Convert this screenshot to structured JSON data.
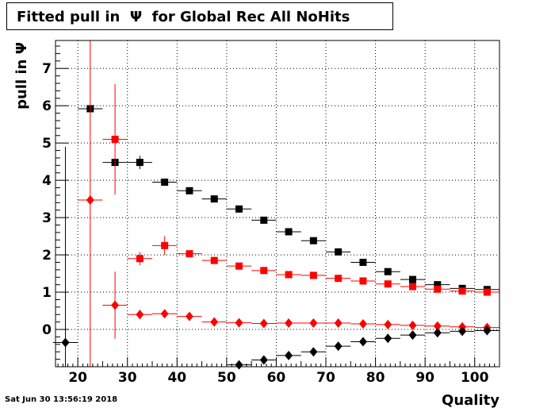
{
  "title": "Fitted pull in  Ψ  for Global Rec All NoHits",
  "timestamp": "Sat Jun 30 13:56:19 2018",
  "chart_data": {
    "type": "scatter",
    "title": "Fitted pull in  Ψ  for Global Rec All NoHits",
    "xlabel": "Quality",
    "ylabel": "pull in  Ψ",
    "xlim": [
      15.5,
      105
    ],
    "ylim": [
      -1,
      7.75
    ],
    "grid": true,
    "xticks": [
      20,
      30,
      40,
      50,
      60,
      70,
      80,
      90,
      100
    ],
    "yticks": [
      0,
      1,
      2,
      3,
      4,
      5,
      6,
      7
    ],
    "series": [
      {
        "marker": "square",
        "color": "#000000",
        "points": [
          {
            "x": 22.5,
            "y": 5.92,
            "ylo": 5.92,
            "yhi": 5.92
          },
          {
            "x": 27.5,
            "y": 4.48,
            "ylo": 4.48,
            "yhi": 4.48
          },
          {
            "x": 32.5,
            "y": 4.48,
            "ylo": 4.3,
            "yhi": 4.66
          },
          {
            "x": 37.5,
            "y": 3.95,
            "ylo": 3.88,
            "yhi": 4.02
          },
          {
            "x": 42.5,
            "y": 3.72,
            "ylo": 3.67,
            "yhi": 3.77
          },
          {
            "x": 47.5,
            "y": 3.5,
            "ylo": 3.46,
            "yhi": 3.54
          },
          {
            "x": 52.5,
            "y": 3.23,
            "ylo": 3.2,
            "yhi": 3.26
          },
          {
            "x": 57.5,
            "y": 2.93,
            "ylo": 2.9,
            "yhi": 2.96
          },
          {
            "x": 62.5,
            "y": 2.62,
            "ylo": 2.6,
            "yhi": 2.64
          },
          {
            "x": 67.5,
            "y": 2.38,
            "ylo": 2.36,
            "yhi": 2.4
          },
          {
            "x": 72.5,
            "y": 2.08,
            "ylo": 2.06,
            "yhi": 2.1
          },
          {
            "x": 77.5,
            "y": 1.8,
            "ylo": 1.78,
            "yhi": 1.82
          },
          {
            "x": 82.5,
            "y": 1.55,
            "ylo": 1.53,
            "yhi": 1.57
          },
          {
            "x": 87.5,
            "y": 1.34,
            "ylo": 1.32,
            "yhi": 1.36
          },
          {
            "x": 92.5,
            "y": 1.2,
            "ylo": 1.18,
            "yhi": 1.22
          },
          {
            "x": 97.5,
            "y": 1.1,
            "ylo": 1.08,
            "yhi": 1.12
          },
          {
            "x": 102.5,
            "y": 1.07,
            "ylo": 1.05,
            "yhi": 1.09
          }
        ]
      },
      {
        "marker": "square",
        "color": "#ff0000",
        "points": [
          {
            "x": 27.5,
            "y": 5.1,
            "ylo": 3.62,
            "yhi": 6.58
          },
          {
            "x": 32.5,
            "y": 1.9,
            "ylo": 1.72,
            "yhi": 2.08
          },
          {
            "x": 37.5,
            "y": 2.25,
            "ylo": 2.0,
            "yhi": 2.5
          },
          {
            "x": 42.5,
            "y": 2.03,
            "ylo": 1.97,
            "yhi": 2.09
          },
          {
            "x": 47.5,
            "y": 1.85,
            "ylo": 1.81,
            "yhi": 1.89
          },
          {
            "x": 52.5,
            "y": 1.7,
            "ylo": 1.67,
            "yhi": 1.73
          },
          {
            "x": 57.5,
            "y": 1.58,
            "ylo": 1.55,
            "yhi": 1.61
          },
          {
            "x": 62.5,
            "y": 1.47,
            "ylo": 1.45,
            "yhi": 1.49
          },
          {
            "x": 67.5,
            "y": 1.45,
            "ylo": 1.43,
            "yhi": 1.47
          },
          {
            "x": 72.5,
            "y": 1.37,
            "ylo": 1.35,
            "yhi": 1.39
          },
          {
            "x": 77.5,
            "y": 1.3,
            "ylo": 1.28,
            "yhi": 1.32
          },
          {
            "x": 82.5,
            "y": 1.22,
            "ylo": 1.2,
            "yhi": 1.24
          },
          {
            "x": 87.5,
            "y": 1.15,
            "ylo": 1.13,
            "yhi": 1.17
          },
          {
            "x": 92.5,
            "y": 1.08,
            "ylo": 1.06,
            "yhi": 1.1
          },
          {
            "x": 97.5,
            "y": 1.03,
            "ylo": 1.01,
            "yhi": 1.05
          },
          {
            "x": 102.5,
            "y": 1.0,
            "ylo": 0.98,
            "yhi": 1.02
          }
        ]
      },
      {
        "marker": "diamond",
        "color": "#ff0000",
        "points": [
          {
            "x": 22.5,
            "y": 3.47,
            "ylo": -1,
            "yhi": 7.75
          },
          {
            "x": 27.5,
            "y": 0.65,
            "ylo": -0.25,
            "yhi": 1.55
          },
          {
            "x": 32.5,
            "y": 0.4,
            "ylo": 0.27,
            "yhi": 0.53
          },
          {
            "x": 37.5,
            "y": 0.42,
            "ylo": 0.33,
            "yhi": 0.51
          },
          {
            "x": 42.5,
            "y": 0.35,
            "ylo": 0.3,
            "yhi": 0.4
          },
          {
            "x": 47.5,
            "y": 0.2,
            "ylo": 0.17,
            "yhi": 0.23
          },
          {
            "x": 52.5,
            "y": 0.18,
            "ylo": 0.16,
            "yhi": 0.2
          },
          {
            "x": 57.5,
            "y": 0.16,
            "ylo": 0.14,
            "yhi": 0.18
          },
          {
            "x": 62.5,
            "y": 0.17,
            "ylo": 0.15,
            "yhi": 0.19
          },
          {
            "x": 67.5,
            "y": 0.17,
            "ylo": 0.15,
            "yhi": 0.19
          },
          {
            "x": 72.5,
            "y": 0.17,
            "ylo": 0.15,
            "yhi": 0.19
          },
          {
            "x": 77.5,
            "y": 0.15,
            "ylo": 0.13,
            "yhi": 0.17
          },
          {
            "x": 82.5,
            "y": 0.13,
            "ylo": 0.11,
            "yhi": 0.15
          },
          {
            "x": 87.5,
            "y": 0.11,
            "ylo": 0.09,
            "yhi": 0.13
          },
          {
            "x": 92.5,
            "y": 0.09,
            "ylo": 0.07,
            "yhi": 0.11
          },
          {
            "x": 97.5,
            "y": 0.07,
            "ylo": 0.05,
            "yhi": 0.09
          },
          {
            "x": 102.5,
            "y": 0.05,
            "ylo": 0.03,
            "yhi": 0.07
          }
        ]
      },
      {
        "marker": "diamond",
        "color": "#000000",
        "points": [
          {
            "x": 17.5,
            "y": -0.35,
            "ylo": -1,
            "yhi": 4.9
          },
          {
            "x": 52.5,
            "y": -0.95,
            "ylo": -0.97,
            "yhi": -0.93
          },
          {
            "x": 57.5,
            "y": -0.82,
            "ylo": -0.84,
            "yhi": -0.8
          },
          {
            "x": 62.5,
            "y": -0.7,
            "ylo": -0.72,
            "yhi": -0.68
          },
          {
            "x": 67.5,
            "y": -0.6,
            "ylo": -0.62,
            "yhi": -0.58
          },
          {
            "x": 72.5,
            "y": -0.45,
            "ylo": -0.47,
            "yhi": -0.43
          },
          {
            "x": 77.5,
            "y": -0.33,
            "ylo": -0.35,
            "yhi": -0.31
          },
          {
            "x": 82.5,
            "y": -0.24,
            "ylo": -0.26,
            "yhi": -0.22
          },
          {
            "x": 87.5,
            "y": -0.15,
            "ylo": -0.17,
            "yhi": -0.13
          },
          {
            "x": 92.5,
            "y": -0.09,
            "ylo": -0.11,
            "yhi": -0.07
          },
          {
            "x": 97.5,
            "y": -0.05,
            "ylo": -0.07,
            "yhi": -0.03
          },
          {
            "x": 102.5,
            "y": -0.03,
            "ylo": -0.05,
            "yhi": -0.01
          }
        ]
      }
    ]
  }
}
